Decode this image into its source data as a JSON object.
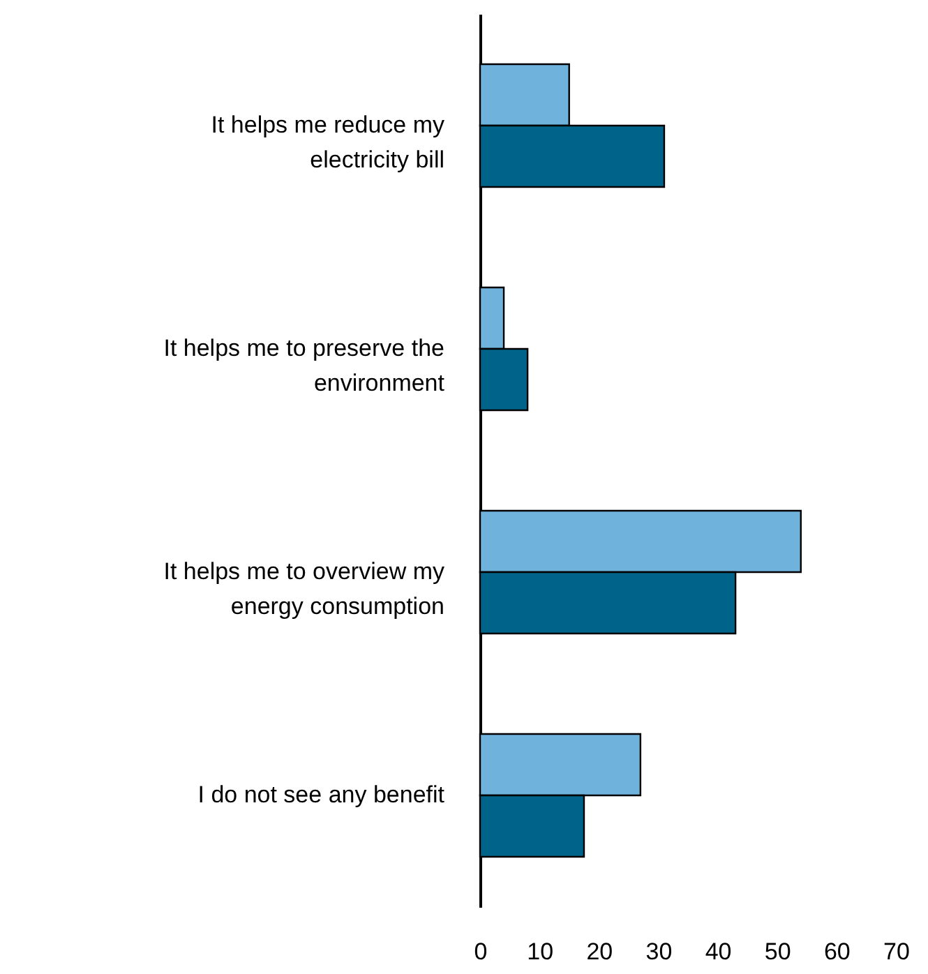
{
  "chart_data": {
    "type": "bar",
    "orientation": "horizontal",
    "categories": [
      "It helps me reduce my electricity bill",
      "It helps me to preserve the environment",
      "It helps me to overview my energy consumption",
      "I do not see any benefit"
    ],
    "series": [
      {
        "color": "#6fb3dc",
        "values": [
          15,
          4,
          54,
          27
        ]
      },
      {
        "color": "#006389",
        "values": [
          31,
          8,
          43,
          17.5
        ]
      }
    ],
    "xlim": [
      0,
      70
    ],
    "xticks": [
      0,
      10,
      20,
      30,
      40,
      50,
      60,
      70
    ],
    "grid": false
  }
}
